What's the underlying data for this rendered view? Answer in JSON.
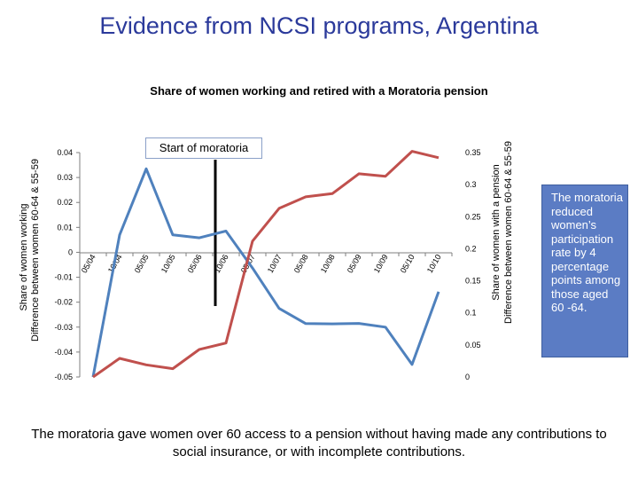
{
  "slide": {
    "title": "Evidence from NCSI programs, Argentina",
    "footnote": "The moratoria gave women over 60 access to a pension without having made any contributions to social insurance, or with incomplete contributions.",
    "side_note": "The moratoria reduced women’s participation rate by 4 percentage points among those aged 60 -64."
  },
  "colors": {
    "working_series": "#4f81bd",
    "pension_series": "#c0504d",
    "title": "#2b3a9b",
    "side_note_bg": "#5b7cc4",
    "marker_line": "#000000"
  },
  "chart_data": {
    "type": "line",
    "title": "Share of women working and retired with a Moratoria pension",
    "annotation": "Start of moratoria",
    "annotation_category": "10/06",
    "categories": [
      "05/04",
      "10/04",
      "05/05",
      "10/05",
      "05/06",
      "10/06",
      "05/07",
      "10/07",
      "05/08",
      "10/08",
      "05/09",
      "10/09",
      "05/10",
      "10/10"
    ],
    "y_left": {
      "label_line1": "Share of women working",
      "label_line2": "Difference between women 60-64 & 55-59",
      "ticks": [
        "0.04",
        "0.03",
        "0.02",
        "0.01",
        "0",
        "-0.01",
        "-0.02",
        "-0.03",
        "-0.04",
        "-0.05"
      ],
      "range": [
        -0.05,
        0.04
      ]
    },
    "y_right": {
      "label_line1": "Share of women with a pension",
      "label_line2": "Difference between women 60-64 & 55-59",
      "ticks": [
        "0.35",
        "0.3",
        "0.25",
        "0.2",
        "0.15",
        "0.1",
        "0.05",
        "0"
      ],
      "range": [
        0,
        0.35
      ]
    },
    "series": [
      {
        "name": "Share of women working",
        "axis": "left",
        "values": [
          -0.05,
          0.007,
          0.0335,
          0.007,
          0.0058,
          0.0085,
          -0.0063,
          -0.0225,
          -0.0286,
          -0.0287,
          -0.0285,
          -0.03,
          -0.045,
          -0.0158
        ]
      },
      {
        "name": "Share of women with a pension",
        "axis": "right",
        "values": [
          0,
          0.029,
          0.019,
          0.013,
          0.043,
          0.053,
          0.212,
          0.263,
          0.281,
          0.286,
          0.317,
          0.313,
          0.352,
          0.342
        ]
      }
    ]
  }
}
